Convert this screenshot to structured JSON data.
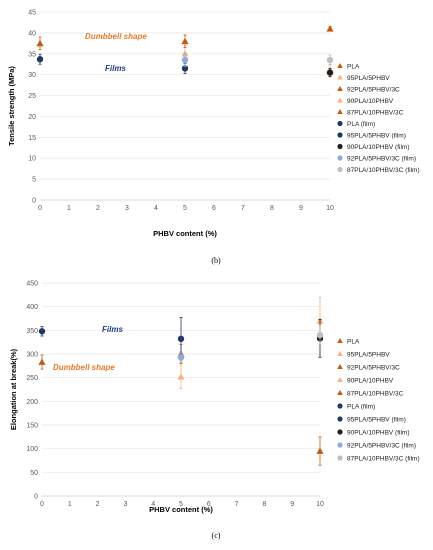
{
  "colors": {
    "PLA": "#c55a11",
    "95PLA/5PHBV": "#f4b183",
    "92PLA/5PHBV/3C": "#c55a11",
    "90PLA/10PHBV": "#f4b183",
    "87PLA/10PHBV/3C": "#c55a11",
    "PLA (film)": "#203864",
    "95PLA/5PHBV (film)": "#203864",
    "90PLA/10PHBV (film)": "#1f1f1f",
    "92PLA/5PHBV/3C (film)": "#8faadc",
    "87PLA/10PHBV/3C (film)": "#bfbfbf"
  },
  "chart_data": [
    {
      "type": "scatter",
      "panel_label": "(b)",
      "xlabel": "PHBV content (%)",
      "ylabel": "Tensile strength (MPa)",
      "xlim": [
        0,
        10
      ],
      "ylim": [
        0,
        45
      ],
      "xticks": [
        "0",
        "1",
        "2",
        "3",
        "4",
        "5",
        "6",
        "7",
        "8",
        "9",
        "10"
      ],
      "yticks": [
        "0",
        "5",
        "10",
        "15",
        "20",
        "25",
        "30",
        "35",
        "40",
        "45"
      ],
      "annotations": [
        {
          "text": "Dumbbell shape",
          "style": "orange"
        },
        {
          "text": "Films",
          "style": "blue"
        }
      ],
      "legend_position": "right",
      "series": [
        {
          "name": "PLA",
          "marker": "triangle",
          "points": [
            {
              "x": 0,
              "y": 37.5,
              "err": 1.5
            }
          ]
        },
        {
          "name": "95PLA/5PHBV",
          "marker": "triangle",
          "points": [
            {
              "x": 5,
              "y": 35,
              "err": 2
            }
          ]
        },
        {
          "name": "92PLA/5PHBV/3C",
          "marker": "triangle",
          "points": [
            {
              "x": 5,
              "y": 38,
              "err": 1.5
            }
          ]
        },
        {
          "name": "90PLA/10PHBV",
          "marker": "triangle",
          "points": [
            {
              "x": 10,
              "y": 31,
              "err": 1.5
            }
          ]
        },
        {
          "name": "87PLA/10PHBV/3C",
          "marker": "triangle",
          "points": [
            {
              "x": 10,
              "y": 41,
              "err": 0.5
            }
          ]
        },
        {
          "name": "PLA (film)",
          "marker": "circle",
          "points": [
            {
              "x": 0,
              "y": 33.7,
              "err": 1.2
            }
          ]
        },
        {
          "name": "95PLA/5PHBV (film)",
          "marker": "circle",
          "points": [
            {
              "x": 5,
              "y": 31.5,
              "err": 1.2
            }
          ]
        },
        {
          "name": "90PLA/10PHBV (film)",
          "marker": "circle",
          "points": [
            {
              "x": 10,
              "y": 30.5,
              "err": 1
            }
          ]
        },
        {
          "name": "92PLA/5PHBV/3C (film)",
          "marker": "circle",
          "points": [
            {
              "x": 5,
              "y": 33.5,
              "err": 1.5
            }
          ]
        },
        {
          "name": "87PLA/10PHBV/3C (film)",
          "marker": "circle",
          "points": [
            {
              "x": 10,
              "y": 33.5,
              "err": 1.2
            }
          ]
        }
      ]
    },
    {
      "type": "scatter",
      "panel_label": "(c)",
      "xlabel": "PHBV content (%)",
      "ylabel": "Elongation at break(%)",
      "xlim": [
        0,
        10
      ],
      "ylim": [
        0,
        450
      ],
      "xticks": [
        "0",
        "1",
        "2",
        "3",
        "4",
        "5",
        "6",
        "7",
        "8",
        "9",
        "10"
      ],
      "yticks": [
        "0",
        "50",
        "100",
        "150",
        "200",
        "250",
        "300",
        "350",
        "400",
        "450"
      ],
      "annotations": [
        {
          "text": "Films",
          "style": "blue"
        },
        {
          "text": "Dumbbell shape",
          "style": "orange"
        }
      ],
      "legend_position": "right",
      "series": [
        {
          "name": "PLA",
          "marker": "triangle",
          "points": [
            {
              "x": 0,
              "y": 283,
              "err": 15
            }
          ]
        },
        {
          "name": "95PLA/5PHBV",
          "marker": "triangle",
          "points": [
            {
              "x": 5,
              "y": 252,
              "err": 25
            }
          ]
        },
        {
          "name": "92PLA/5PHBV/3C",
          "marker": "triangle",
          "points": [
            {
              "x": 5,
              "y": 300,
              "err": 20
            }
          ]
        },
        {
          "name": "90PLA/10PHBV",
          "marker": "triangle",
          "points": [
            {
              "x": 10,
              "y": 370,
              "err": 50
            }
          ]
        },
        {
          "name": "87PLA/10PHBV/3C",
          "marker": "triangle",
          "points": [
            {
              "x": 10,
              "y": 95,
              "err": 30
            }
          ]
        },
        {
          "name": "PLA (film)",
          "marker": "circle",
          "points": [
            {
              "x": 0,
              "y": 348,
              "err": 10
            }
          ]
        },
        {
          "name": "95PLA/5PHBV (film)",
          "marker": "circle",
          "points": [
            {
              "x": 5,
              "y": 332,
              "err": 45
            }
          ]
        },
        {
          "name": "90PLA/10PHBV (film)",
          "marker": "circle",
          "points": [
            {
              "x": 10,
              "y": 333,
              "err": 40
            }
          ]
        },
        {
          "name": "92PLA/5PHBV/3C (film)",
          "marker": "circle",
          "points": [
            {
              "x": 5,
              "y": 293,
              "err": 10
            }
          ]
        },
        {
          "name": "87PLA/10PHBV/3C (film)",
          "marker": "circle",
          "points": [
            {
              "x": 10,
              "y": 340,
              "err": 20
            }
          ]
        }
      ]
    }
  ]
}
